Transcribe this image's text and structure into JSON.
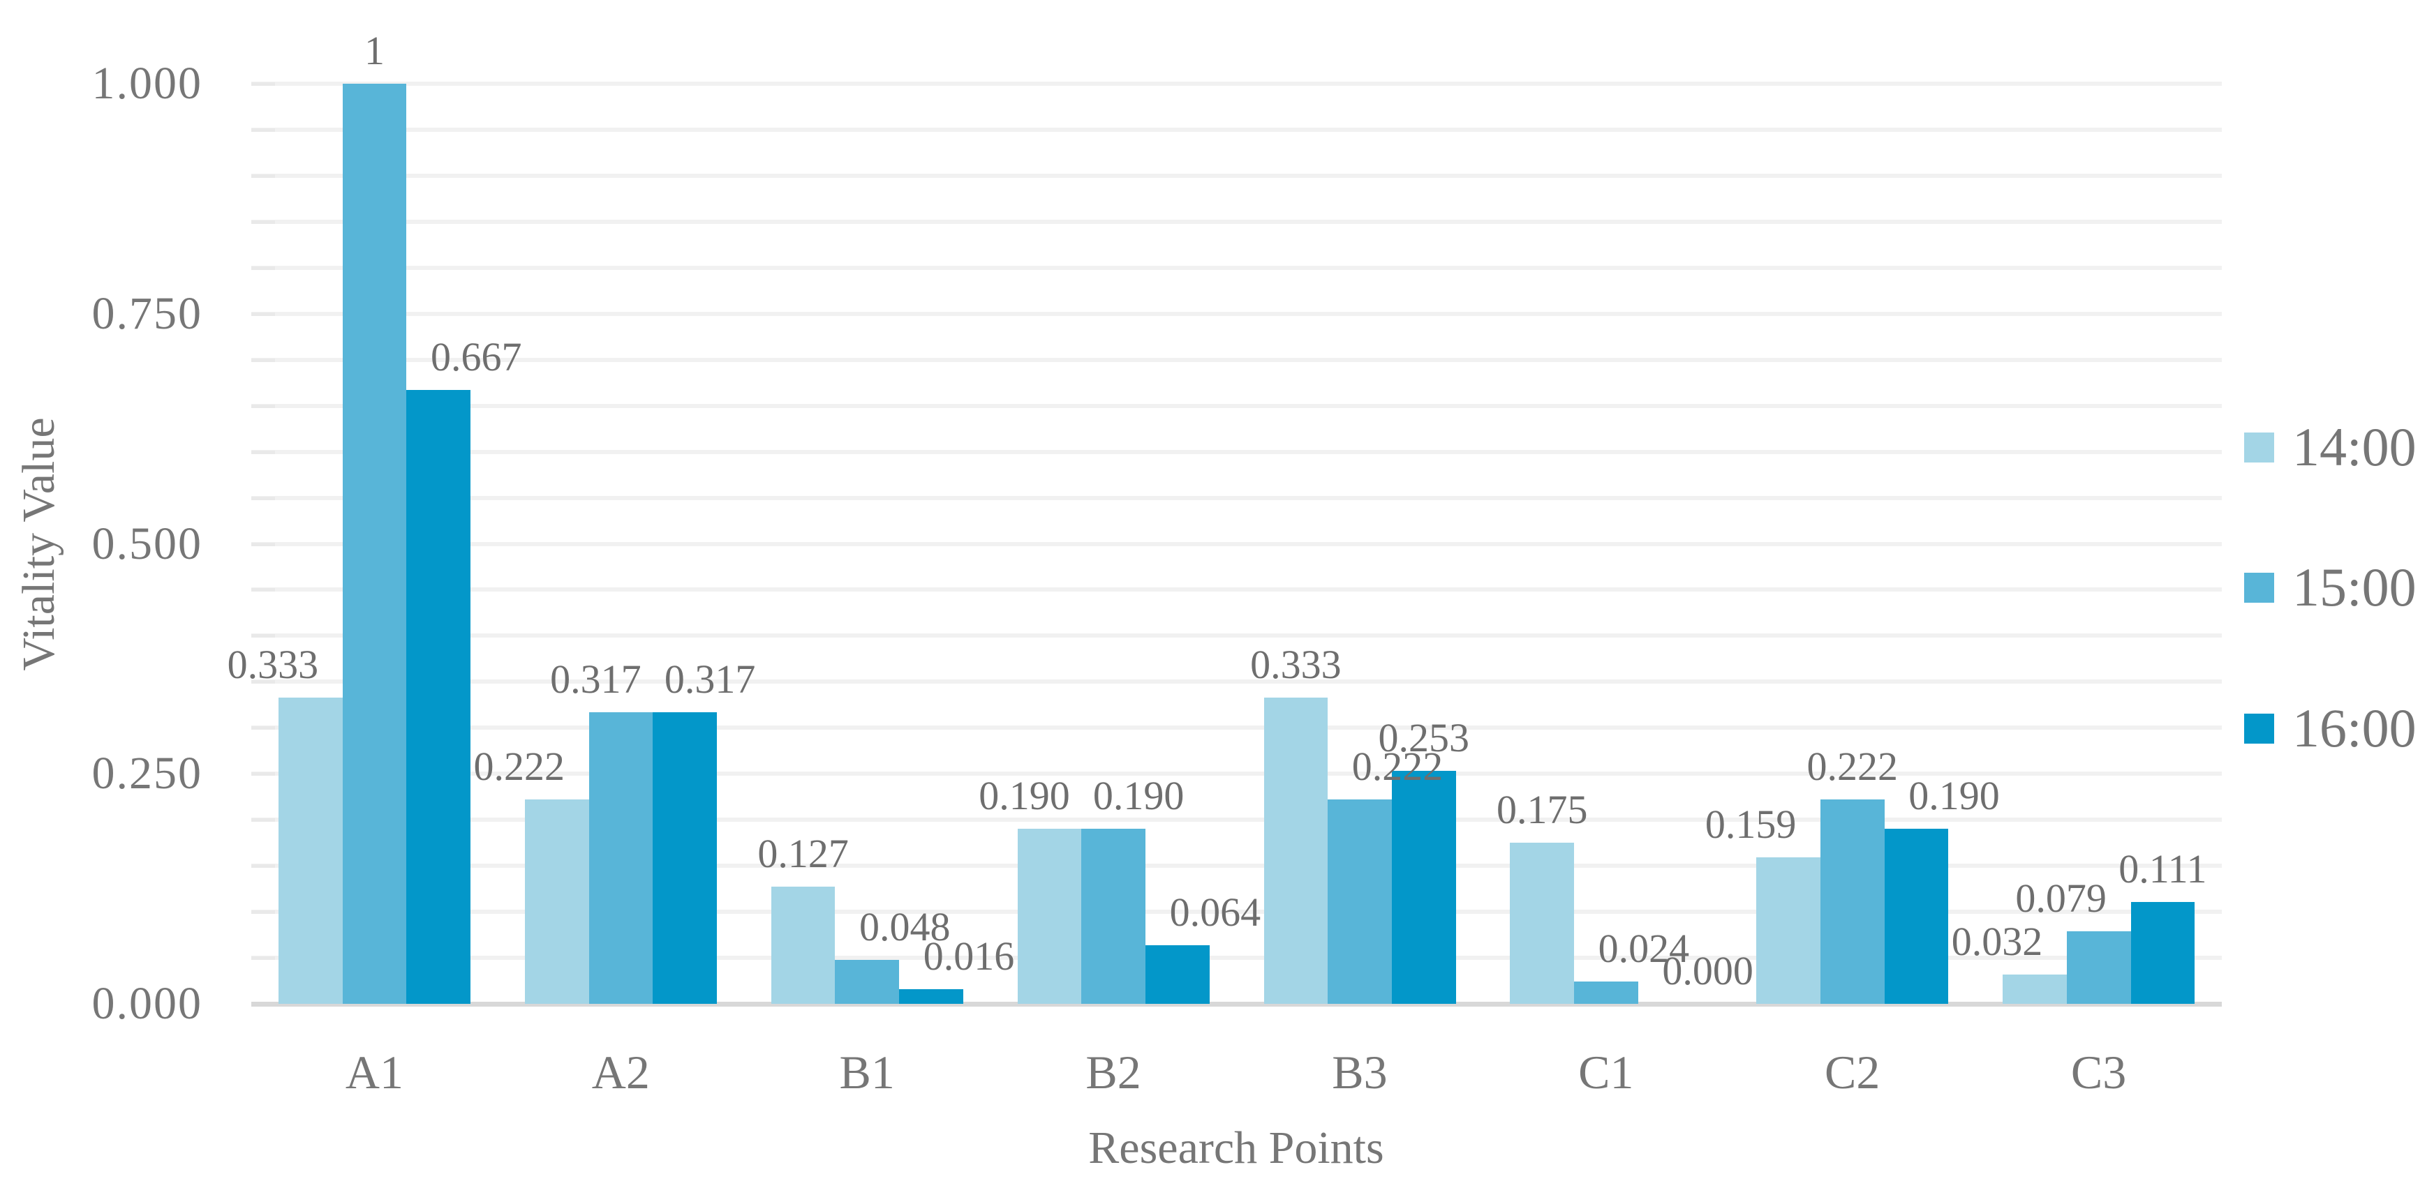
{
  "chart_data": {
    "type": "bar",
    "title": "",
    "xlabel": "Research Points",
    "ylabel": "Vitality Value",
    "categories": [
      "A1",
      "A2",
      "B1",
      "B2",
      "B3",
      "C1",
      "C2",
      "C3"
    ],
    "series": [
      {
        "name": "14:00",
        "color": "#a3d5e6",
        "values": [
          0.333,
          0.222,
          0.127,
          0.19,
          0.333,
          0.175,
          0.159,
          0.032
        ],
        "labels": [
          "0.333",
          "0.222",
          "0.127",
          "0.190",
          "0.333",
          "0.175",
          "0.159",
          "0.032"
        ]
      },
      {
        "name": "15:00",
        "color": "#58b5d8",
        "values": [
          1,
          0.317,
          0.048,
          0.19,
          0.222,
          0.024,
          0.222,
          0.079
        ],
        "labels": [
          "1",
          "0.317",
          "0.048",
          "0.190",
          "0.222",
          "0.024",
          "0.222",
          "0.079"
        ]
      },
      {
        "name": "16:00",
        "color": "#0397c9",
        "values": [
          0.667,
          0.317,
          0.016,
          0.064,
          0.253,
          0.0,
          0.19,
          0.111
        ],
        "labels": [
          "0.667",
          "0.317",
          "0.016",
          "0.064",
          "0.253",
          "0.000",
          "0.190",
          "0.111"
        ]
      }
    ],
    "y_ticks": [
      "1.000",
      "0.750",
      "0.500",
      "0.250",
      "0.000"
    ],
    "y_tick_values": [
      1.0,
      0.75,
      0.5,
      0.25,
      0.0
    ],
    "ylim": [
      0,
      1.0
    ],
    "minor_gridline_step": 0.05,
    "grid": true,
    "legend_position": "right"
  },
  "colors": {
    "gridline": "#f1f1f1",
    "baseline": "#d8d8d8",
    "tick": "#e9e9e9",
    "text": "#767676",
    "data_label_text": "#6e6e6e",
    "background": "#ffffff"
  }
}
